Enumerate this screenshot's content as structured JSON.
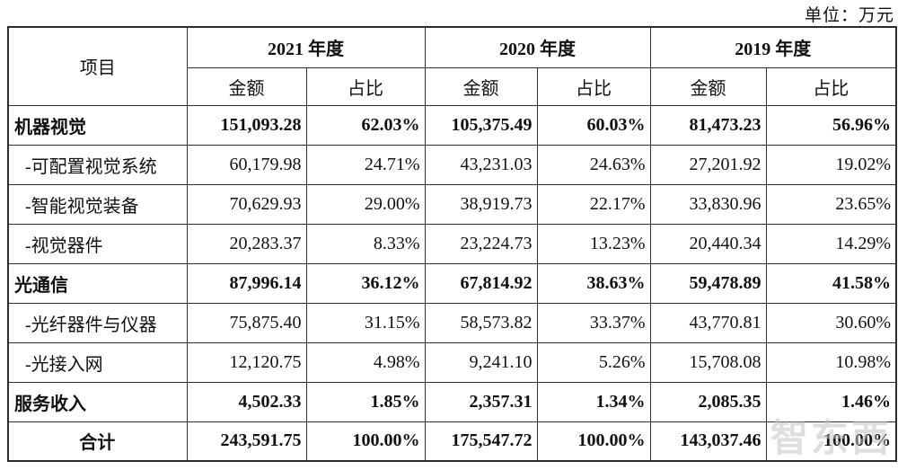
{
  "unit_label": "单位：万元",
  "watermark_text": "智东西",
  "table": {
    "item_header": "项目",
    "year_headers": [
      "2021 年度",
      "2020 年度",
      "2019 年度"
    ],
    "sub_headers": [
      "金额",
      "占比"
    ],
    "rows": [
      {
        "label": "机器视觉",
        "bold": true,
        "indent": false,
        "center": false,
        "values": [
          "151,093.28",
          "62.03%",
          "105,375.49",
          "60.03%",
          "81,473.23",
          "56.96%"
        ]
      },
      {
        "label": "-可配置视觉系统",
        "bold": false,
        "indent": true,
        "center": false,
        "values": [
          "60,179.98",
          "24.71%",
          "43,231.03",
          "24.63%",
          "27,201.92",
          "19.02%"
        ]
      },
      {
        "label": "-智能视觉装备",
        "bold": false,
        "indent": true,
        "center": false,
        "values": [
          "70,629.93",
          "29.00%",
          "38,919.73",
          "22.17%",
          "33,830.96",
          "23.65%"
        ]
      },
      {
        "label": "-视觉器件",
        "bold": false,
        "indent": true,
        "center": false,
        "values": [
          "20,283.37",
          "8.33%",
          "23,224.73",
          "13.23%",
          "20,440.34",
          "14.29%"
        ]
      },
      {
        "label": "光通信",
        "bold": true,
        "indent": false,
        "center": false,
        "values": [
          "87,996.14",
          "36.12%",
          "67,814.92",
          "38.63%",
          "59,478.89",
          "41.58%"
        ]
      },
      {
        "label": "-光纤器件与仪器",
        "bold": false,
        "indent": true,
        "center": false,
        "values": [
          "75,875.40",
          "31.15%",
          "58,573.82",
          "33.37%",
          "43,770.81",
          "30.60%"
        ]
      },
      {
        "label": "-光接入网",
        "bold": false,
        "indent": true,
        "center": false,
        "values": [
          "12,120.75",
          "4.98%",
          "9,241.10",
          "5.26%",
          "15,708.08",
          "10.98%"
        ]
      },
      {
        "label": "服务收入",
        "bold": true,
        "indent": false,
        "center": false,
        "values": [
          "4,502.33",
          "1.85%",
          "2,357.31",
          "1.34%",
          "2,085.35",
          "1.46%"
        ]
      },
      {
        "label": "合计",
        "bold": true,
        "indent": false,
        "center": true,
        "values": [
          "243,591.75",
          "100.00%",
          "175,547.72",
          "100.00%",
          "143,037.46",
          "100.00%"
        ]
      }
    ]
  }
}
